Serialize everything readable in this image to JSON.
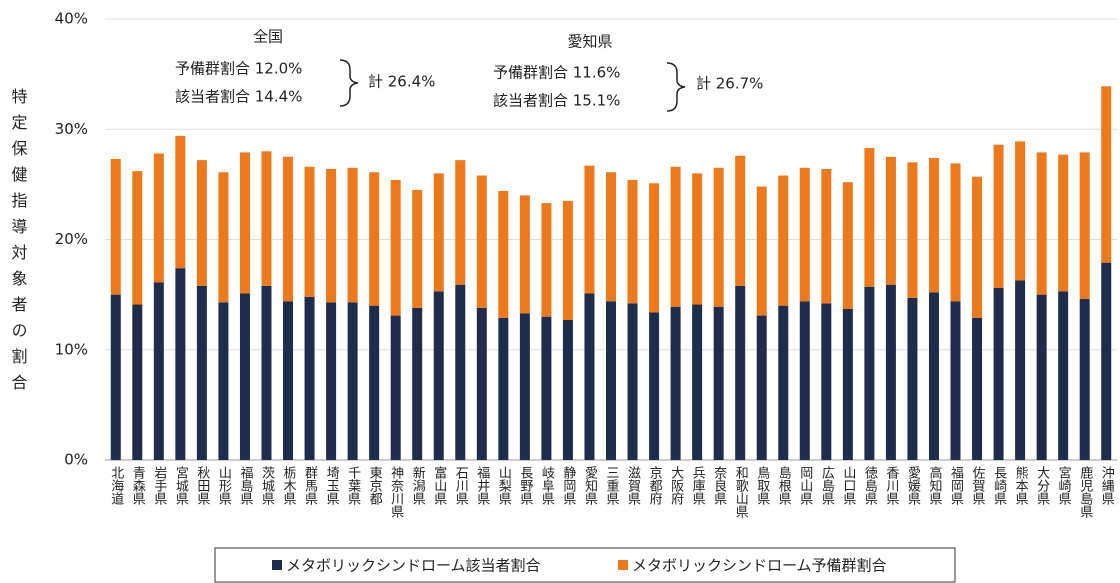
{
  "chart_data": {
    "type": "stacked_bar",
    "y_label": "特定保健指導対象者の割合",
    "categories": [
      "北海道",
      "青森県",
      "岩手県",
      "宮城県",
      "秋田県",
      "山形県",
      "福島県",
      "茨城県",
      "栃木県",
      "群馬県",
      "埼玉県",
      "千葉県",
      "東京都",
      "神奈川県",
      "新潟県",
      "富山県",
      "石川県",
      "福井県",
      "山梨県",
      "長野県",
      "岐阜県",
      "静岡県",
      "愛知県",
      "三重県",
      "滋賀県",
      "京都府",
      "大阪府",
      "兵庫県",
      "奈良県",
      "和歌山県",
      "鳥取県",
      "島根県",
      "岡山県",
      "広島県",
      "山口県",
      "徳島県",
      "香川県",
      "愛媛県",
      "高知県",
      "福岡県",
      "佐賀県",
      "長崎県",
      "熊本県",
      "大分県",
      "宮崎県",
      "鹿児島県",
      "沖縄県"
    ],
    "series": [
      {
        "name": "メタボリックシンドローム該当者割合",
        "color": "#1f2d4d",
        "values": [
          15.0,
          14.1,
          16.1,
          17.4,
          15.8,
          14.3,
          15.1,
          15.8,
          14.4,
          14.8,
          14.3,
          14.3,
          14.0,
          13.1,
          13.8,
          15.3,
          15.9,
          13.8,
          12.9,
          13.3,
          13.0,
          12.7,
          15.1,
          14.4,
          14.2,
          13.4,
          13.9,
          14.1,
          13.9,
          15.8,
          13.1,
          14.0,
          14.4,
          14.2,
          13.7,
          15.7,
          15.9,
          14.7,
          15.2,
          14.4,
          12.9,
          15.6,
          16.3,
          15.0,
          15.3,
          14.6,
          17.9
        ]
      },
      {
        "name": "メタボリックシンドローム予備群割合",
        "color": "#ec7a1c",
        "values": [
          12.3,
          12.1,
          11.7,
          12.0,
          11.4,
          11.8,
          12.8,
          12.2,
          13.1,
          11.8,
          12.1,
          12.2,
          12.1,
          12.3,
          10.7,
          10.7,
          11.3,
          12.0,
          11.5,
          10.7,
          10.3,
          10.8,
          11.6,
          11.7,
          11.2,
          11.7,
          12.7,
          11.9,
          12.6,
          11.8,
          11.7,
          11.8,
          12.1,
          12.2,
          11.5,
          12.6,
          11.6,
          12.3,
          12.2,
          12.5,
          12.8,
          13.0,
          12.6,
          12.9,
          12.4,
          13.3,
          16.0
        ]
      }
    ],
    "ylim": [
      0,
      40
    ],
    "yticks": [
      {
        "value": 0,
        "label": "0%"
      },
      {
        "value": 10,
        "label": "10%"
      },
      {
        "value": 20,
        "label": "20%"
      },
      {
        "value": 30,
        "label": "30%"
      },
      {
        "value": 40,
        "label": "40%"
      }
    ],
    "grid": true,
    "legend": "bottom",
    "annotations": [
      {
        "title": "全国",
        "lines": [
          "予備群割合  12.0%",
          "該当者割合  14.4%"
        ],
        "total": "計 26.4%"
      },
      {
        "title": "愛知県",
        "lines": [
          "予備群割合  11.6%",
          "該当者割合  15.1%"
        ],
        "total": "計 26.7%"
      }
    ]
  }
}
